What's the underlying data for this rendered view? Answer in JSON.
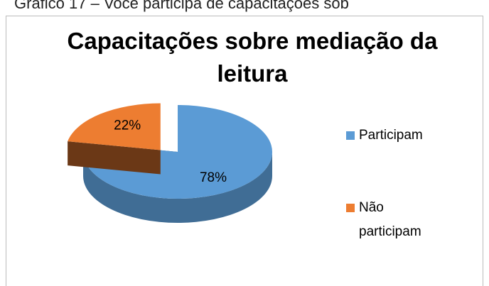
{
  "caption": "Gráfico 17 – Você participa de capacitações sob",
  "chart_data": {
    "type": "pie3d",
    "title": "Capacitações sobre mediação da leitura",
    "categories": [
      "Participam",
      "Não participam"
    ],
    "values": [
      78,
      22
    ],
    "value_labels": [
      "78%",
      "22%"
    ],
    "colors": [
      "#5b9bd5",
      "#ed7d31"
    ],
    "legend": "right"
  }
}
